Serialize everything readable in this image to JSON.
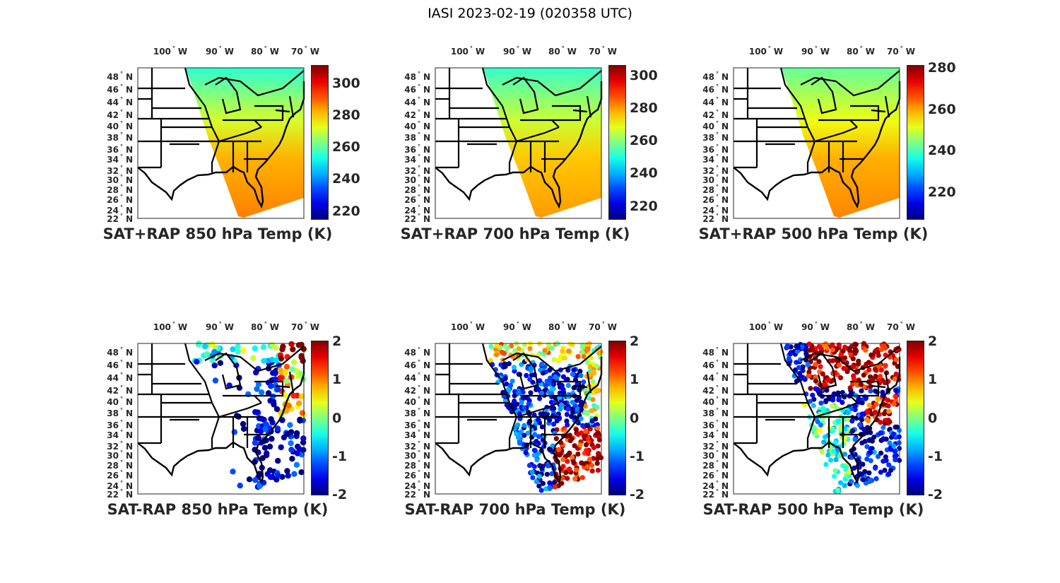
{
  "figure_title": "IASI 2023-02-19 (020358 UTC)",
  "lon_labels": [
    {
      "deg": "100",
      "hem": "W"
    },
    {
      "deg": "90",
      "hem": "W"
    },
    {
      "deg": "80",
      "hem": "W"
    },
    {
      "deg": "70",
      "hem": "W"
    }
  ],
  "lat_labels": [
    "48",
    "46",
    "44",
    "42",
    "40",
    "38",
    "36",
    "34",
    "32",
    "30",
    "28",
    "26",
    "24",
    "22"
  ],
  "lat_hem": "N",
  "degree_symbol": "°",
  "panels": [
    {
      "title": "SAT+RAP 850 hPa Temp (K)",
      "kind": "abs",
      "crange": [
        215,
        311
      ],
      "ticks": [
        "220",
        "240",
        "260",
        "280",
        "300"
      ],
      "tick_values": [
        220,
        240,
        260,
        280,
        300
      ],
      "field_range": [
        255,
        287
      ]
    },
    {
      "title": "SAT+RAP 700 hPa Temp (K)",
      "kind": "abs",
      "crange": [
        212,
        306
      ],
      "ticks": [
        "220",
        "240",
        "260",
        "280",
        "300"
      ],
      "tick_values": [
        220,
        240,
        260,
        280,
        300
      ],
      "field_range": [
        252,
        280
      ]
    },
    {
      "title": "SAT+RAP 500 hPa Temp (K)",
      "kind": "abs",
      "crange": [
        207,
        281
      ],
      "ticks": [
        "220",
        "240",
        "260",
        "280"
      ],
      "tick_values": [
        220,
        240,
        260,
        280
      ],
      "field_range": [
        242,
        262
      ]
    },
    {
      "title": "SAT-RAP 850 hPa Temp (K)",
      "kind": "diff",
      "crange": [
        -2,
        2
      ],
      "ticks": [
        "2",
        "1",
        "0",
        "-1",
        "-2"
      ],
      "tick_values": [
        2,
        1,
        0,
        -1,
        -2
      ],
      "pattern": "p850"
    },
    {
      "title": "SAT-RAP 700 hPa Temp (K)",
      "kind": "diff",
      "crange": [
        -2,
        2
      ],
      "ticks": [
        "2",
        "1",
        "0",
        "-1",
        "-2"
      ],
      "tick_values": [
        2,
        1,
        0,
        -1,
        -2
      ],
      "pattern": "p700"
    },
    {
      "title": "SAT-RAP 500 hPa Temp (K)",
      "kind": "diff",
      "crange": [
        -2,
        2
      ],
      "ticks": [
        "2",
        "1",
        "0",
        "-1",
        "-2"
      ],
      "tick_values": [
        2,
        1,
        0,
        -1,
        -2
      ],
      "pattern": "p500"
    }
  ]
}
